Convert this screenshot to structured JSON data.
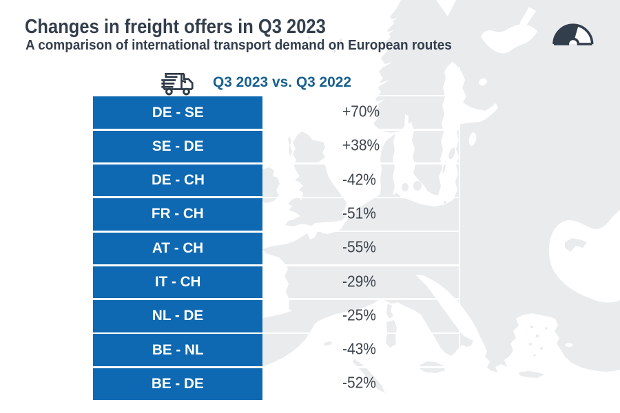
{
  "title": "Changes in freight offers in Q3 2023",
  "subtitle": "A comparison of international transport demand on European routes",
  "comparison": {
    "icon": "truck-icon",
    "label": "Q3 2023 vs. Q3 2022"
  },
  "logo": "speedometer-gauge-logo",
  "rows": [
    {
      "route": "DE - SE",
      "value": "+70%"
    },
    {
      "route": "SE - DE",
      "value": "+38%"
    },
    {
      "route": "DE - CH",
      "value": "-42%"
    },
    {
      "route": "FR - CH",
      "value": "-51%"
    },
    {
      "route": "AT - CH",
      "value": "-55%"
    },
    {
      "route": "IT - CH",
      "value": "-29%"
    },
    {
      "route": "NL - DE",
      "value": "-25%"
    },
    {
      "route": "BE - NL",
      "value": "-43%"
    },
    {
      "route": "BE - DE",
      "value": "-52%"
    }
  ],
  "colors": {
    "box_blue": "#0e69b2",
    "header_blue": "#17608f",
    "navy": "#333e4c",
    "value_grey": "#3d434c",
    "map_grey": "#e9ebed",
    "background": "#ffffff"
  },
  "chart_data": {
    "type": "table",
    "title": "Changes in freight offers in Q3 2023",
    "subtitle": "A comparison of international transport demand on European routes",
    "comparison_label": "Q3 2023 vs. Q3 2022",
    "categories": [
      "DE - SE",
      "SE - DE",
      "DE - CH",
      "FR - CH",
      "AT - CH",
      "IT - CH",
      "NL - DE",
      "BE - NL",
      "BE - DE"
    ],
    "values": [
      70,
      38,
      -42,
      -51,
      -55,
      -29,
      -25,
      -43,
      -52
    ],
    "unit": "%"
  }
}
